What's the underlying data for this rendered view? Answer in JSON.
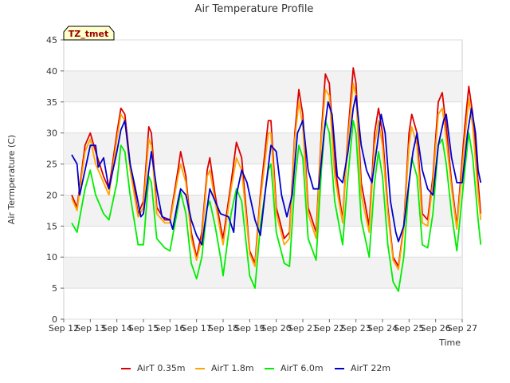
{
  "chart_data": {
    "type": "line",
    "title": "Air Temperature Profile",
    "xlabel": "Time",
    "ylabel": "Air Termperature (C)",
    "ylim": [
      0,
      45
    ],
    "yticks": [
      0,
      5,
      10,
      15,
      20,
      25,
      30,
      35,
      40,
      45
    ],
    "xlim": [
      12,
      27
    ],
    "xticks": [
      12,
      13,
      14,
      15,
      16,
      17,
      18,
      19,
      20,
      21,
      22,
      23,
      24,
      25,
      26,
      27
    ],
    "xtick_labels": [
      "Sep 12",
      "Sep 13",
      "Sep 14",
      "Sep 15",
      "Sep 16",
      "Sep 17",
      "Sep 18",
      "Sep 19",
      "Sep 20",
      "Sep 21",
      "Sep 22",
      "Sep 23",
      "Sep 24",
      "Sep 25",
      "Sep 26",
      "Sep 27"
    ],
    "grid": "horizontal bands",
    "legend_position": "bottom",
    "site_label": "TZ_tmet",
    "series": [
      {
        "name": "AirT 0.35m",
        "color": "#dd0000",
        "points": [
          [
            12.3,
            20
          ],
          [
            12.5,
            18
          ],
          [
            12.8,
            28
          ],
          [
            13.0,
            30
          ],
          [
            13.2,
            27
          ],
          [
            13.5,
            23
          ],
          [
            13.7,
            21
          ],
          [
            14.0,
            30
          ],
          [
            14.15,
            34
          ],
          [
            14.3,
            33
          ],
          [
            14.5,
            25
          ],
          [
            14.8,
            17
          ],
          [
            15.0,
            19
          ],
          [
            15.2,
            31
          ],
          [
            15.3,
            30
          ],
          [
            15.5,
            18
          ],
          [
            15.8,
            16
          ],
          [
            16.0,
            16
          ],
          [
            16.3,
            24
          ],
          [
            16.4,
            27
          ],
          [
            16.6,
            23
          ],
          [
            16.8,
            14
          ],
          [
            17.0,
            10
          ],
          [
            17.2,
            14
          ],
          [
            17.4,
            24
          ],
          [
            17.5,
            26
          ],
          [
            17.7,
            20
          ],
          [
            17.9,
            15
          ],
          [
            18.0,
            13
          ],
          [
            18.3,
            22
          ],
          [
            18.5,
            28.5
          ],
          [
            18.7,
            26
          ],
          [
            19.0,
            11
          ],
          [
            19.2,
            9
          ],
          [
            19.4,
            20
          ],
          [
            19.7,
            32
          ],
          [
            19.8,
            32
          ],
          [
            20.0,
            18
          ],
          [
            20.3,
            13
          ],
          [
            20.5,
            14
          ],
          [
            20.7,
            30
          ],
          [
            20.85,
            37
          ],
          [
            21.0,
            33
          ],
          [
            21.2,
            18
          ],
          [
            21.5,
            14
          ],
          [
            21.7,
            30
          ],
          [
            21.85,
            39.5
          ],
          [
            22.0,
            38
          ],
          [
            22.2,
            25
          ],
          [
            22.5,
            16
          ],
          [
            22.7,
            30
          ],
          [
            22.9,
            40.5
          ],
          [
            23.0,
            38
          ],
          [
            23.2,
            22
          ],
          [
            23.5,
            15
          ],
          [
            23.7,
            30
          ],
          [
            23.85,
            34
          ],
          [
            24.0,
            30
          ],
          [
            24.2,
            18
          ],
          [
            24.4,
            10
          ],
          [
            24.6,
            8.5
          ],
          [
            24.8,
            15
          ],
          [
            25.0,
            30
          ],
          [
            25.1,
            33
          ],
          [
            25.3,
            30
          ],
          [
            25.5,
            17
          ],
          [
            25.7,
            16
          ],
          [
            25.9,
            23
          ],
          [
            26.1,
            35
          ],
          [
            26.25,
            36.5
          ],
          [
            26.4,
            31
          ],
          [
            26.6,
            22
          ],
          [
            26.8,
            15
          ],
          [
            27.1,
            31
          ],
          [
            27.25,
            37.5
          ],
          [
            27.4,
            33
          ],
          [
            27.6,
            22
          ],
          [
            27.7,
            17
          ]
        ]
      },
      {
        "name": "AirT 1.8m",
        "color": "#ffa500",
        "points": [
          [
            12.3,
            19.5
          ],
          [
            12.5,
            17.5
          ],
          [
            12.8,
            27
          ],
          [
            13.0,
            29
          ],
          [
            13.2,
            25
          ],
          [
            13.5,
            22
          ],
          [
            13.7,
            20
          ],
          [
            14.0,
            29
          ],
          [
            14.15,
            33
          ],
          [
            14.3,
            32
          ],
          [
            14.5,
            24
          ],
          [
            14.8,
            16.5
          ],
          [
            15.0,
            18
          ],
          [
            15.2,
            29
          ],
          [
            15.3,
            28
          ],
          [
            15.5,
            17
          ],
          [
            15.8,
            15.5
          ],
          [
            16.0,
            15.5
          ],
          [
            16.3,
            23
          ],
          [
            16.4,
            25
          ],
          [
            16.6,
            22
          ],
          [
            16.8,
            13
          ],
          [
            17.0,
            9.5
          ],
          [
            17.2,
            13
          ],
          [
            17.4,
            23
          ],
          [
            17.5,
            24
          ],
          [
            17.7,
            19
          ],
          [
            17.9,
            14
          ],
          [
            18.0,
            12
          ],
          [
            18.3,
            21
          ],
          [
            18.5,
            26
          ],
          [
            18.7,
            24
          ],
          [
            19.0,
            10.5
          ],
          [
            19.2,
            8.5
          ],
          [
            19.4,
            19
          ],
          [
            19.7,
            30
          ],
          [
            19.8,
            30
          ],
          [
            20.0,
            17
          ],
          [
            20.3,
            12
          ],
          [
            20.5,
            13
          ],
          [
            20.7,
            29
          ],
          [
            20.85,
            35
          ],
          [
            21.0,
            31
          ],
          [
            21.2,
            17
          ],
          [
            21.5,
            13
          ],
          [
            21.7,
            29
          ],
          [
            21.85,
            37
          ],
          [
            22.0,
            36
          ],
          [
            22.2,
            23
          ],
          [
            22.5,
            15.5
          ],
          [
            22.7,
            29
          ],
          [
            22.9,
            38
          ],
          [
            23.0,
            36
          ],
          [
            23.2,
            20
          ],
          [
            23.5,
            14
          ],
          [
            23.7,
            28
          ],
          [
            23.85,
            32
          ],
          [
            24.0,
            28
          ],
          [
            24.2,
            17
          ],
          [
            24.4,
            9.5
          ],
          [
            24.6,
            8
          ],
          [
            24.8,
            14.5
          ],
          [
            25.0,
            28
          ],
          [
            25.1,
            31
          ],
          [
            25.3,
            28
          ],
          [
            25.5,
            15.5
          ],
          [
            25.7,
            15
          ],
          [
            25.9,
            22
          ],
          [
            26.1,
            33
          ],
          [
            26.25,
            34
          ],
          [
            26.4,
            29
          ],
          [
            26.6,
            21
          ],
          [
            26.8,
            14.5
          ],
          [
            27.1,
            29
          ],
          [
            27.25,
            35.5
          ],
          [
            27.4,
            31
          ],
          [
            27.6,
            20
          ],
          [
            27.7,
            16
          ]
        ]
      },
      {
        "name": "AirT 6.0m",
        "color": "#00ee00",
        "points": [
          [
            12.3,
            15.5
          ],
          [
            12.5,
            14
          ],
          [
            12.8,
            21
          ],
          [
            13.0,
            24
          ],
          [
            13.2,
            20
          ],
          [
            13.5,
            17
          ],
          [
            13.7,
            16
          ],
          [
            14.0,
            22
          ],
          [
            14.15,
            28
          ],
          [
            14.3,
            27
          ],
          [
            14.5,
            20
          ],
          [
            14.8,
            12
          ],
          [
            15.0,
            12
          ],
          [
            15.2,
            23
          ],
          [
            15.3,
            22
          ],
          [
            15.5,
            13
          ],
          [
            15.8,
            11.5
          ],
          [
            16.0,
            11
          ],
          [
            16.3,
            18
          ],
          [
            16.4,
            20.5
          ],
          [
            16.6,
            17
          ],
          [
            16.8,
            9
          ],
          [
            17.0,
            6.5
          ],
          [
            17.2,
            10
          ],
          [
            17.4,
            18
          ],
          [
            17.5,
            19
          ],
          [
            17.7,
            15
          ],
          [
            17.9,
            10
          ],
          [
            18.0,
            7
          ],
          [
            18.3,
            17
          ],
          [
            18.5,
            21
          ],
          [
            18.7,
            19
          ],
          [
            19.0,
            7
          ],
          [
            19.2,
            5
          ],
          [
            19.4,
            15
          ],
          [
            19.7,
            24
          ],
          [
            19.8,
            25
          ],
          [
            20.0,
            14
          ],
          [
            20.3,
            9
          ],
          [
            20.5,
            8.5
          ],
          [
            20.7,
            22
          ],
          [
            20.85,
            28
          ],
          [
            21.0,
            26
          ],
          [
            21.2,
            13
          ],
          [
            21.5,
            9.5
          ],
          [
            21.7,
            24
          ],
          [
            21.85,
            32
          ],
          [
            22.0,
            30
          ],
          [
            22.2,
            19
          ],
          [
            22.5,
            12
          ],
          [
            22.7,
            23
          ],
          [
            22.9,
            32
          ],
          [
            23.0,
            30
          ],
          [
            23.2,
            16
          ],
          [
            23.5,
            10
          ],
          [
            23.7,
            22
          ],
          [
            23.85,
            27
          ],
          [
            24.0,
            23
          ],
          [
            24.2,
            12
          ],
          [
            24.4,
            6
          ],
          [
            24.6,
            4.5
          ],
          [
            24.8,
            10
          ],
          [
            25.0,
            22
          ],
          [
            25.1,
            26
          ],
          [
            25.3,
            23
          ],
          [
            25.5,
            12
          ],
          [
            25.7,
            11.5
          ],
          [
            25.9,
            17
          ],
          [
            26.1,
            28
          ],
          [
            26.25,
            29
          ],
          [
            26.4,
            25
          ],
          [
            26.6,
            17
          ],
          [
            26.8,
            11
          ],
          [
            27.1,
            24
          ],
          [
            27.25,
            30
          ],
          [
            27.4,
            26
          ],
          [
            27.6,
            16
          ],
          [
            27.7,
            12
          ]
        ]
      },
      {
        "name": "AirT 22m",
        "color": "#0000cc",
        "points": [
          [
            12.3,
            26.5
          ],
          [
            12.5,
            25
          ],
          [
            12.6,
            20
          ],
          [
            12.8,
            24
          ],
          [
            13.0,
            28
          ],
          [
            13.2,
            28
          ],
          [
            13.3,
            24.5
          ],
          [
            13.5,
            26
          ],
          [
            13.7,
            21
          ],
          [
            14.0,
            27
          ],
          [
            14.15,
            30.5
          ],
          [
            14.3,
            32
          ],
          [
            14.5,
            25
          ],
          [
            14.7,
            21
          ],
          [
            14.9,
            16.5
          ],
          [
            15.0,
            17
          ],
          [
            15.2,
            24
          ],
          [
            15.3,
            27
          ],
          [
            15.5,
            21
          ],
          [
            15.7,
            16.5
          ],
          [
            16.0,
            16
          ],
          [
            16.1,
            14.5
          ],
          [
            16.3,
            19
          ],
          [
            16.4,
            21
          ],
          [
            16.6,
            20
          ],
          [
            16.8,
            16
          ],
          [
            17.0,
            13.5
          ],
          [
            17.2,
            12
          ],
          [
            17.4,
            18
          ],
          [
            17.5,
            21
          ],
          [
            17.7,
            19
          ],
          [
            17.9,
            17
          ],
          [
            18.2,
            16.5
          ],
          [
            18.4,
            14
          ],
          [
            18.5,
            20
          ],
          [
            18.7,
            24
          ],
          [
            18.9,
            22
          ],
          [
            19.2,
            16
          ],
          [
            19.4,
            13.5
          ],
          [
            19.6,
            21
          ],
          [
            19.8,
            28
          ],
          [
            20.0,
            27
          ],
          [
            20.2,
            20
          ],
          [
            20.4,
            16.5
          ],
          [
            20.6,
            20
          ],
          [
            20.8,
            30
          ],
          [
            21.0,
            32
          ],
          [
            21.2,
            24
          ],
          [
            21.4,
            21
          ],
          [
            21.6,
            21
          ],
          [
            21.8,
            30
          ],
          [
            21.95,
            35
          ],
          [
            22.1,
            33
          ],
          [
            22.3,
            23
          ],
          [
            22.5,
            22
          ],
          [
            22.7,
            27
          ],
          [
            22.9,
            34
          ],
          [
            23.0,
            36
          ],
          [
            23.2,
            28
          ],
          [
            23.4,
            24
          ],
          [
            23.6,
            22
          ],
          [
            23.8,
            28
          ],
          [
            23.95,
            33
          ],
          [
            24.1,
            30
          ],
          [
            24.3,
            19
          ],
          [
            24.5,
            14
          ],
          [
            24.6,
            12.5
          ],
          [
            24.8,
            15
          ],
          [
            25.0,
            22
          ],
          [
            25.15,
            27
          ],
          [
            25.3,
            30
          ],
          [
            25.5,
            24
          ],
          [
            25.7,
            21
          ],
          [
            25.9,
            20
          ],
          [
            26.1,
            28
          ],
          [
            26.3,
            32
          ],
          [
            26.4,
            33
          ],
          [
            26.6,
            26
          ],
          [
            26.8,
            22
          ],
          [
            27.0,
            22
          ],
          [
            27.2,
            30
          ],
          [
            27.35,
            34
          ],
          [
            27.5,
            30
          ],
          [
            27.6,
            24
          ],
          [
            27.7,
            22
          ]
        ]
      }
    ]
  }
}
